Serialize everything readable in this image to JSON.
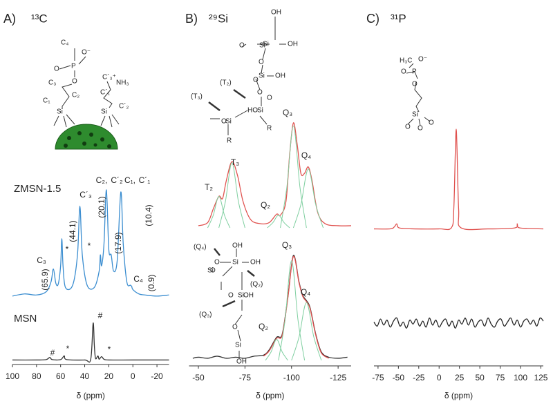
{
  "chart_data": [
    {
      "type": "line",
      "label": "A)",
      "title": "¹³C",
      "xlabel": "δ (ppm)",
      "xlim": [
        100,
        -30
      ],
      "xticks": [
        100,
        80,
        60,
        40,
        20,
        0,
        -20
      ],
      "structure": [
        "C₄",
        "O⁻",
        "P",
        "O",
        "O",
        "C₃",
        "C₂",
        "C₁",
        "Si",
        "C´₃⁺",
        "NH₃",
        "C´₁",
        "C´₂",
        "Si"
      ],
      "annotations": [
        "C₃",
        "(65.9)",
        "*",
        "(44.1)",
        "C´₃",
        "*",
        "C₂,",
        "C´₂",
        "(20.1)",
        "(17.9)",
        "C₁,",
        "C´₁",
        "(10.4)",
        "C₄",
        "(0.9)",
        "#",
        "*",
        "#",
        "*"
      ],
      "series": [
        {
          "name": "ZMSN-1.5",
          "color": "#3a8dd0",
          "x": [
            100,
            90,
            80,
            72,
            68,
            66,
            64,
            62,
            60,
            59,
            58,
            56,
            50,
            46,
            44,
            42,
            38,
            32,
            28,
            27,
            26,
            24,
            22,
            20,
            18,
            16,
            13,
            10,
            8,
            5,
            2,
            1,
            0,
            -5,
            -10,
            -20,
            -30
          ],
          "values": [
            2,
            4,
            3,
            6,
            15,
            27,
            14,
            13,
            30,
            55,
            30,
            10,
            12,
            40,
            85,
            40,
            12,
            10,
            25,
            40,
            30,
            50,
            100,
            45,
            40,
            25,
            35,
            98,
            50,
            15,
            12,
            11,
            8,
            4,
            3,
            2,
            3
          ]
        },
        {
          "name": "MSN",
          "color": "#333333",
          "x": [
            100,
            80,
            72,
            69,
            67,
            60,
            57,
            55,
            40,
            35,
            33,
            32,
            31,
            29,
            28,
            26,
            24,
            20,
            0,
            -30
          ],
          "values": [
            1,
            1,
            2,
            8,
            2,
            2,
            12,
            2,
            1,
            3,
            100,
            40,
            5,
            12,
            3,
            10,
            3,
            1,
            1,
            1
          ]
        }
      ]
    },
    {
      "type": "line",
      "label": "B)",
      "title": "²⁹Si",
      "xlabel": "δ (ppm)",
      "xlim": [
        -45,
        -132
      ],
      "xticks": [
        -50,
        -75,
        -100,
        -125
      ],
      "structure": [
        "OH",
        "O",
        "Si",
        "OH",
        "Si",
        "O",
        "O",
        "O",
        "Si",
        "OH",
        "(T₂)",
        "(T₃)",
        "HO",
        "Si",
        "O",
        "Si",
        "R",
        "R",
        "O",
        "(Q₄)",
        "OH",
        "O",
        "Si",
        "OH",
        "Si",
        "O",
        "(Q₂)",
        "O",
        "Si",
        "OH",
        "(Q₃)",
        "O",
        "Si",
        "OH"
      ],
      "annotations": [
        "T₂",
        "T₃",
        "Q₂",
        "Q₃",
        "Q₄",
        "Q₂",
        "Q₃",
        "Q₄"
      ],
      "series": [
        {
          "color": "#e0524f",
          "x": [
            -50,
            -55,
            -58,
            -61,
            -63,
            -65,
            -68,
            -71,
            -74,
            -78,
            -83,
            -88,
            -92,
            -94,
            -97,
            -99,
            -101,
            -103,
            -105,
            -107,
            -109,
            -111,
            -114,
            -118,
            -125,
            -132
          ],
          "values": [
            2,
            5,
            18,
            30,
            28,
            45,
            63,
            50,
            25,
            8,
            4,
            5,
            13,
            12,
            25,
            70,
            100,
            80,
            52,
            52,
            58,
            45,
            15,
            4,
            2,
            2
          ]
        },
        {
          "color": "#7fcfa0",
          "x": [
            -55,
            -58,
            -61,
            -64,
            -67
          ],
          "values": [
            0,
            12,
            30,
            12,
            0
          ]
        },
        {
          "color": "#7fcfa0",
          "x": [
            -61,
            -64.5,
            -68,
            -71.5,
            -75
          ],
          "values": [
            0,
            25,
            62,
            25,
            0
          ]
        },
        {
          "color": "#7fcfa0",
          "x": [
            -87,
            -90,
            -93,
            -96,
            -99
          ],
          "values": [
            0,
            5,
            12,
            5,
            0
          ]
        },
        {
          "color": "#7fcfa0",
          "x": [
            -94,
            -97.5,
            -101,
            -104.5,
            -108
          ],
          "values": [
            0,
            39,
            97,
            39,
            0
          ]
        },
        {
          "color": "#7fcfa0",
          "x": [
            -101,
            -105,
            -109,
            -113,
            -117
          ],
          "values": [
            0,
            22,
            56,
            22,
            0
          ]
        },
        {
          "color": "#333333",
          "x": [
            -47,
            -50,
            -55,
            -60,
            -65,
            -70,
            -75,
            -80,
            -85,
            -88,
            -92,
            -95,
            -98,
            -101,
            -104,
            -106,
            -108,
            -110,
            -113,
            -116,
            -120,
            -125,
            -130
          ],
          "values": [
            2,
            3,
            2,
            4,
            2,
            3,
            2,
            4,
            5,
            10,
            22,
            25,
            60,
            100,
            75,
            62,
            57,
            50,
            25,
            8,
            3,
            2,
            3
          ]
        },
        {
          "color": "#e0524f",
          "x": [
            -85,
            -88,
            -92,
            -95,
            -98,
            -101,
            -104,
            -106,
            -108,
            -110,
            -113,
            -116,
            -120
          ],
          "values": [
            4,
            9,
            21,
            24,
            59,
            99,
            74,
            61,
            56,
            49,
            24,
            7,
            2
          ]
        },
        {
          "color": "#7fcfa0",
          "x": [
            -86,
            -89,
            -92,
            -95,
            -98
          ],
          "values": [
            0,
            8,
            20,
            8,
            0
          ]
        },
        {
          "color": "#7fcfa0",
          "x": [
            -93,
            -96.5,
            -100,
            -103.5,
            -107
          ],
          "values": [
            0,
            38,
            95,
            38,
            0
          ]
        },
        {
          "color": "#7fcfa0",
          "x": [
            -100,
            -104,
            -108,
            -112,
            -116
          ],
          "values": [
            0,
            22,
            55,
            22,
            0
          ]
        }
      ]
    },
    {
      "type": "line",
      "label": "C)",
      "title": "³¹P",
      "xlabel": "δ (ppm)",
      "xlim": [
        -80,
        128
      ],
      "xticks": [
        -75,
        -50,
        -25,
        0,
        25,
        50,
        75,
        100,
        125
      ],
      "structure": [
        "H₃C",
        "O⁻",
        "O",
        "P",
        "O",
        "Si",
        "O",
        "O",
        "O"
      ],
      "series": [
        {
          "color": "#e0524f",
          "x": [
            -80,
            -60,
            -55,
            -52,
            -49,
            -30,
            0,
            15,
            18,
            20,
            21,
            22,
            24,
            27,
            60,
            93,
            96,
            99,
            128
          ],
          "values": [
            1,
            1,
            3,
            6,
            2,
            1,
            1,
            2,
            20,
            80,
            100,
            80,
            20,
            2,
            1,
            2,
            6,
            2,
            1
          ]
        },
        {
          "color": "#222222",
          "x": [
            -80,
            -76,
            -72,
            -68,
            -64,
            -60,
            -56,
            -52,
            -48,
            -44,
            -40,
            -36,
            -32,
            -28,
            -24,
            -20,
            -16,
            -12,
            -8,
            -4,
            0,
            4,
            8,
            12,
            16,
            20,
            24,
            28,
            32,
            36,
            40,
            44,
            48,
            52,
            56,
            60,
            64,
            68,
            72,
            76,
            80,
            84,
            88,
            92,
            96,
            100,
            104,
            108,
            112,
            116,
            120,
            124,
            128
          ],
          "values": [
            1,
            -3,
            4,
            -2,
            3,
            -4,
            2,
            5,
            -3,
            1,
            -5,
            3,
            -1,
            4,
            -3,
            2,
            -4,
            5,
            -2,
            3,
            -4,
            1,
            4,
            -3,
            2,
            -5,
            3,
            -1,
            5,
            -2,
            4,
            -4,
            1,
            3,
            -3,
            5,
            -1,
            -4,
            2,
            4,
            -3,
            1,
            5,
            -2,
            3,
            -4,
            2,
            4,
            -1,
            3,
            -3,
            5,
            2
          ]
        }
      ]
    }
  ]
}
